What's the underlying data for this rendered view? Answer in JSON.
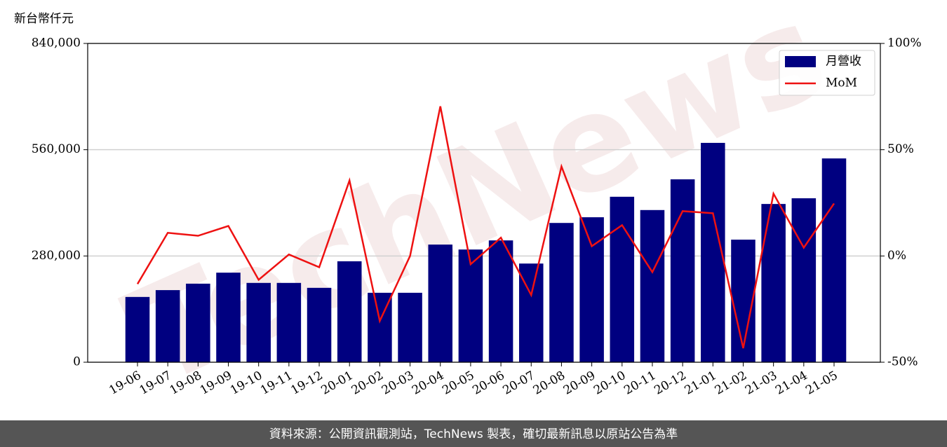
{
  "chart_data": {
    "type": "bar-line",
    "y_label": "新台幣仟元",
    "watermark": "TechNews",
    "footer": "資料來源：公開資訊觀測站，TechNews 製表，確切最新訊息以原站公告為準",
    "categories": [
      "19-06",
      "19-07",
      "19-08",
      "19-09",
      "19-10",
      "19-11",
      "19-12",
      "20-01",
      "20-02",
      "20-03",
      "20-04",
      "20-05",
      "20-06",
      "20-07",
      "20-08",
      "20-09",
      "20-10",
      "20-11",
      "20-12",
      "21-01",
      "21-02",
      "21-03",
      "21-04",
      "21-05"
    ],
    "series": [
      {
        "name": "月營收",
        "type": "bar",
        "color": "#000080",
        "axis": "y",
        "values": [
          172000,
          190000,
          207000,
          236000,
          209000,
          209000,
          196000,
          266000,
          183000,
          183000,
          310000,
          297000,
          321000,
          260000,
          367000,
          382000,
          436000,
          401000,
          482000,
          578000,
          323000,
          417000,
          432000,
          537000
        ]
      },
      {
        "name": "MoM",
        "type": "line",
        "color": "#ee1111",
        "axis": "y2",
        "values": [
          -13.2,
          10.9,
          9.5,
          14.1,
          -11.2,
          0.7,
          -5.3,
          35.5,
          -30.6,
          0,
          70.4,
          -3.9,
          8.6,
          -18.4,
          42.1,
          4.6,
          14.5,
          -7.6,
          21.1,
          20.1,
          -43.4,
          29.3,
          3.9,
          24.7
        ]
      }
    ],
    "ylim": [
      0,
      840000
    ],
    "yticks": [
      {
        "value": 0,
        "label": "0"
      },
      {
        "value": 280000,
        "label": "280,000"
      },
      {
        "value": 560000,
        "label": "560,000"
      },
      {
        "value": 840000,
        "label": "840,000"
      }
    ],
    "y2lim": [
      -50,
      100
    ],
    "y2ticks": [
      {
        "value": -50,
        "label": "-50%"
      },
      {
        "value": 0,
        "label": "0%"
      },
      {
        "value": 50,
        "label": "50%"
      },
      {
        "value": 100,
        "label": "100%"
      }
    ],
    "grid": true,
    "legend": "upper right"
  }
}
